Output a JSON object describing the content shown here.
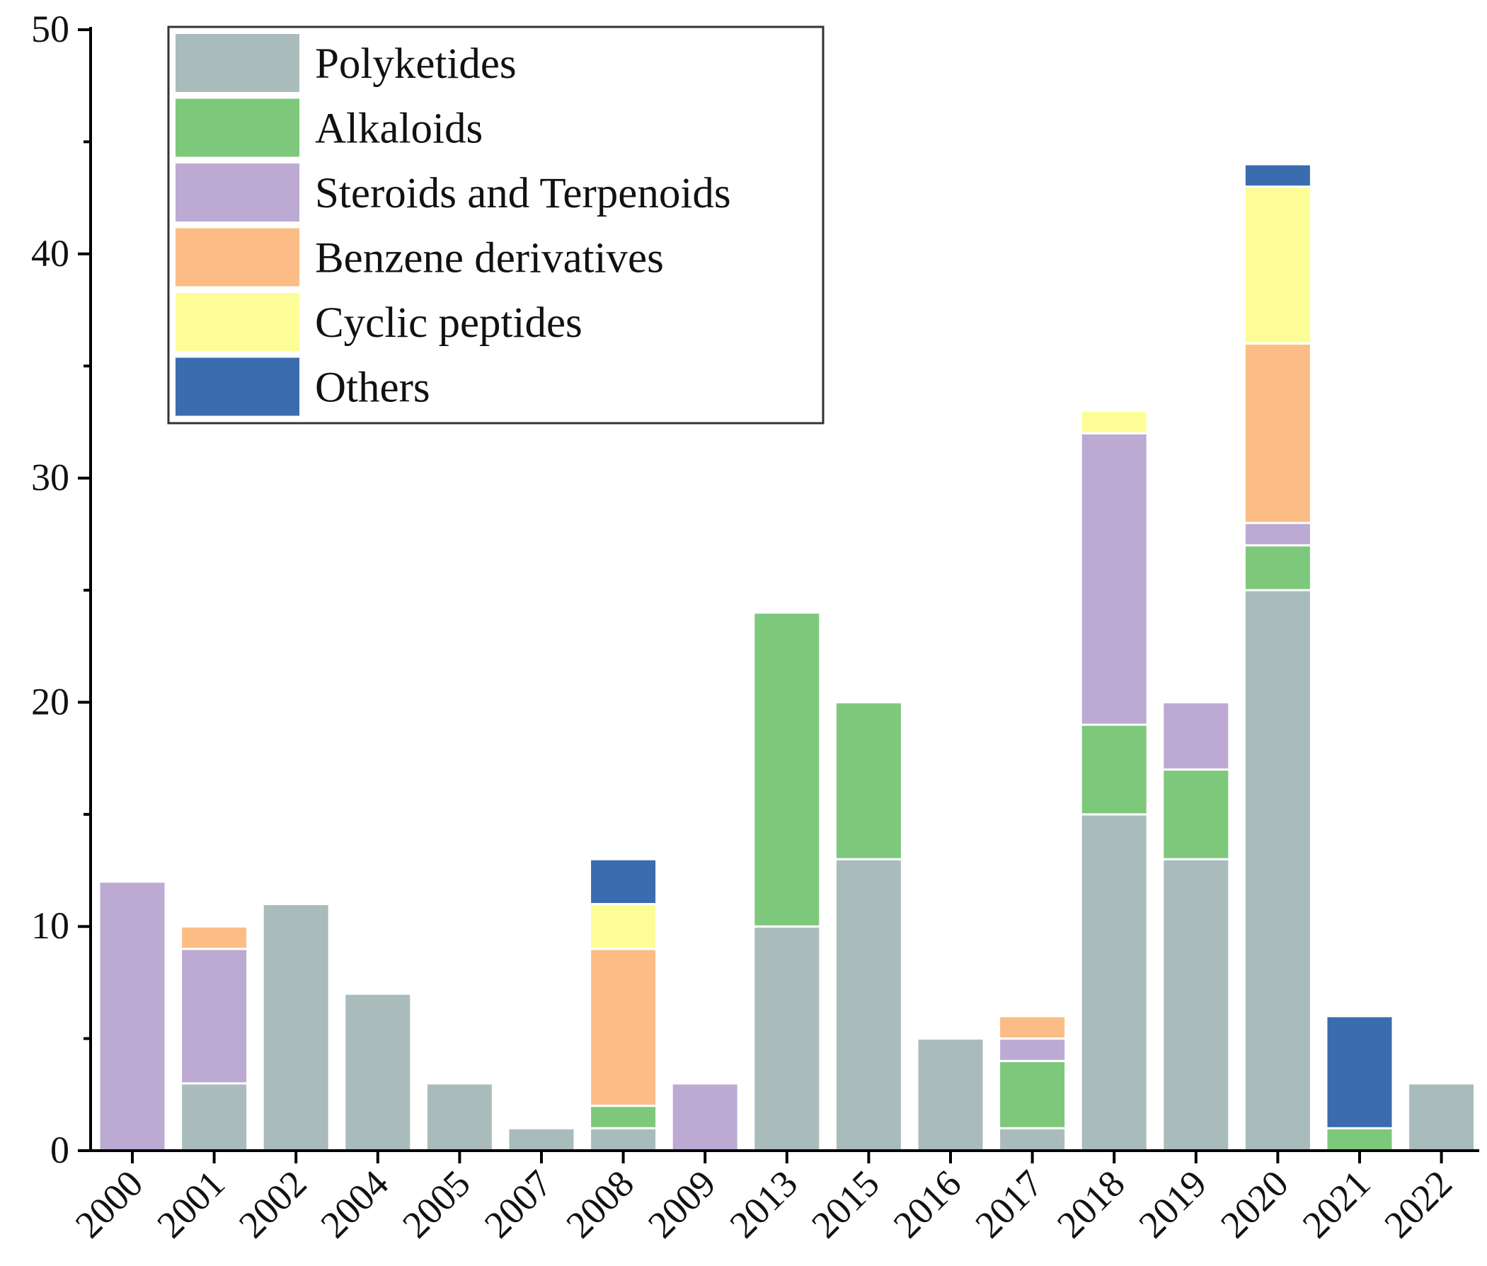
{
  "chart_data": {
    "type": "bar",
    "stacked": true,
    "title": "",
    "xlabel": "",
    "ylabel": "",
    "ylim": [
      0,
      50
    ],
    "yticks": [
      0,
      10,
      20,
      30,
      40,
      50
    ],
    "legend_position": "top-left",
    "categories": [
      "2000",
      "2001",
      "2002",
      "2004",
      "2005",
      "2007",
      "2008",
      "2009",
      "2013",
      "2015",
      "2016",
      "2017",
      "2018",
      "2019",
      "2020",
      "2021",
      "2022"
    ],
    "series": [
      {
        "name": "Polyketides",
        "color": "#aabbbb",
        "values": [
          0,
          3,
          11,
          7,
          3,
          1,
          1,
          0,
          10,
          13,
          5,
          1,
          15,
          13,
          25,
          0,
          3
        ]
      },
      {
        "name": "Alkaloids",
        "color": "#7ec87c",
        "values": [
          0,
          0,
          0,
          0,
          0,
          0,
          1,
          0,
          14,
          7,
          0,
          3,
          4,
          4,
          2,
          1,
          0
        ]
      },
      {
        "name": "Steroids and Terpenoids",
        "color": "#bcaad3",
        "values": [
          12,
          6,
          0,
          0,
          0,
          0,
          0,
          3,
          0,
          0,
          0,
          1,
          13,
          3,
          1,
          0,
          0
        ]
      },
      {
        "name": "Benzene derivatives",
        "color": "#fbbd85",
        "values": [
          0,
          1,
          0,
          0,
          0,
          0,
          7,
          0,
          0,
          0,
          0,
          1,
          0,
          0,
          8,
          0,
          0
        ]
      },
      {
        "name": "Cyclic peptides",
        "color": "#fdfd98",
        "values": [
          0,
          0,
          0,
          0,
          0,
          0,
          2,
          0,
          0,
          0,
          0,
          0,
          1,
          0,
          7,
          0,
          0
        ]
      },
      {
        "name": "Others",
        "color": "#3a6caf",
        "values": [
          0,
          0,
          0,
          0,
          0,
          0,
          2,
          0,
          0,
          0,
          0,
          0,
          0,
          0,
          1,
          5,
          0
        ]
      }
    ]
  }
}
